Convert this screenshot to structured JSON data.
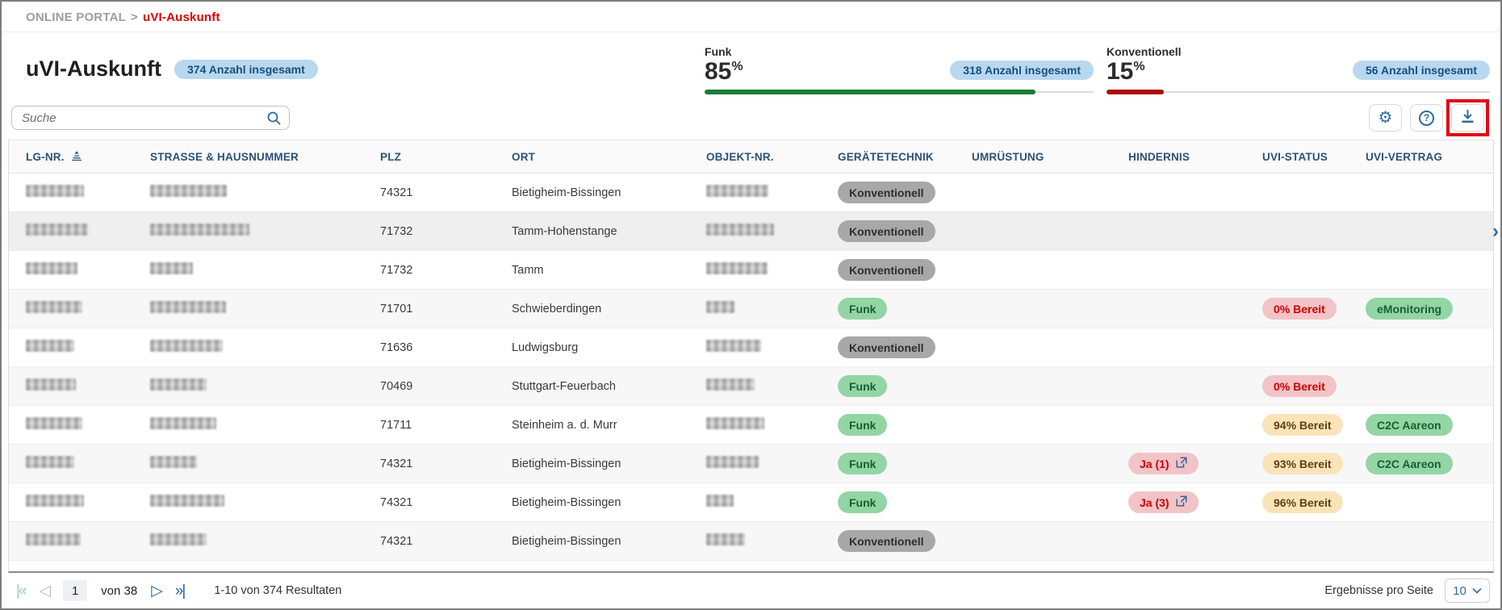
{
  "breadcrumb": {
    "root": "ONLINE PORTAL",
    "separator": ">",
    "current": "uVI-Auskunft"
  },
  "header": {
    "title": "uVI-Auskunft",
    "total_badge": "374 Anzahl insgesamt",
    "stats": [
      {
        "label": "Funk",
        "value": "85",
        "unit": "%",
        "badge": "318 Anzahl insgesamt",
        "percent": 85,
        "color": "#1a7a35"
      },
      {
        "label": "Konventionell",
        "value": "15",
        "unit": "%",
        "badge": "56 Anzahl insgesamt",
        "percent": 15,
        "color": "#b00707"
      }
    ]
  },
  "toolbar": {
    "search_placeholder": "Suche"
  },
  "icons": {
    "gear": "⚙",
    "help": "?",
    "first_page": "|«",
    "prev_page": "◁",
    "next_page": "▷",
    "last_page": "»|",
    "row_chevron": "›"
  },
  "table": {
    "columns": [
      "LG-NR.",
      "STRASSE & HAUSNUMMER",
      "PLZ",
      "ORT",
      "OBJEKT-NR.",
      "GERÄTETECHNIK",
      "UMRÜSTUNG",
      "HINDERNIS",
      "UVI-STATUS",
      "UVI-VERTRAG"
    ],
    "tech_variants": {
      "Funk": "green",
      "Konventionell": "gray"
    },
    "rows": [
      {
        "plz": "74321",
        "ort": "Bietigheim-Bissingen",
        "tech": "Konventionell",
        "hindernis": null,
        "status": null,
        "status_variant": null,
        "vertrag": null,
        "hovered": false,
        "redact": {
          "lg": 72,
          "street": 95,
          "obj": 77
        }
      },
      {
        "plz": "71732",
        "ort": "Tamm-Hohenstange",
        "tech": "Konventionell",
        "hindernis": null,
        "status": null,
        "status_variant": null,
        "vertrag": null,
        "hovered": true,
        "redact": {
          "lg": 77,
          "street": 123,
          "obj": 84
        }
      },
      {
        "plz": "71732",
        "ort": "Tamm",
        "tech": "Konventionell",
        "hindernis": null,
        "status": null,
        "status_variant": null,
        "vertrag": null,
        "hovered": false,
        "redact": {
          "lg": 64,
          "street": 53,
          "obj": 76
        }
      },
      {
        "plz": "71701",
        "ort": "Schwieberdingen",
        "tech": "Funk",
        "hindernis": null,
        "status": "0% Bereit",
        "status_variant": "red",
        "vertrag": "eMonitoring",
        "hovered": false,
        "redact": {
          "lg": 70,
          "street": 94,
          "obj": 35
        }
      },
      {
        "plz": "71636",
        "ort": "Ludwigsburg",
        "tech": "Konventionell",
        "hindernis": null,
        "status": null,
        "status_variant": null,
        "vertrag": null,
        "hovered": false,
        "redact": {
          "lg": 60,
          "street": 90,
          "obj": 68
        }
      },
      {
        "plz": "70469",
        "ort": "Stuttgart-Feuerbach",
        "tech": "Funk",
        "hindernis": null,
        "status": "0% Bereit",
        "status_variant": "red",
        "vertrag": null,
        "hovered": false,
        "redact": {
          "lg": 62,
          "street": 70,
          "obj": 60
        }
      },
      {
        "plz": "71711",
        "ort": "Steinheim a. d. Murr",
        "tech": "Funk",
        "hindernis": null,
        "status": "94% Bereit",
        "status_variant": "yellow",
        "vertrag": "C2C Aareon",
        "hovered": false,
        "redact": {
          "lg": 70,
          "street": 82,
          "obj": 72
        }
      },
      {
        "plz": "74321",
        "ort": "Bietigheim-Bissingen",
        "tech": "Funk",
        "hindernis": "Ja (1)",
        "status": "93% Bereit",
        "status_variant": "yellow",
        "vertrag": "C2C Aareon",
        "hovered": false,
        "redact": {
          "lg": 60,
          "street": 58,
          "obj": 65
        }
      },
      {
        "plz": "74321",
        "ort": "Bietigheim-Bissingen",
        "tech": "Funk",
        "hindernis": "Ja (3)",
        "status": "96% Bereit",
        "status_variant": "yellow",
        "vertrag": null,
        "hovered": false,
        "redact": {
          "lg": 72,
          "street": 92,
          "obj": 34
        }
      },
      {
        "plz": "74321",
        "ort": "Bietigheim-Bissingen",
        "tech": "Konventionell",
        "hindernis": null,
        "status": null,
        "status_variant": null,
        "vertrag": null,
        "hovered": false,
        "redact": {
          "lg": 68,
          "street": 70,
          "obj": 48
        }
      }
    ]
  },
  "pagination": {
    "page": "1",
    "of_label": "von 38",
    "results": "1-10 von 374 Resultaten",
    "per_page_label": "Ergebnisse pro Seite",
    "per_page_value": "10"
  }
}
